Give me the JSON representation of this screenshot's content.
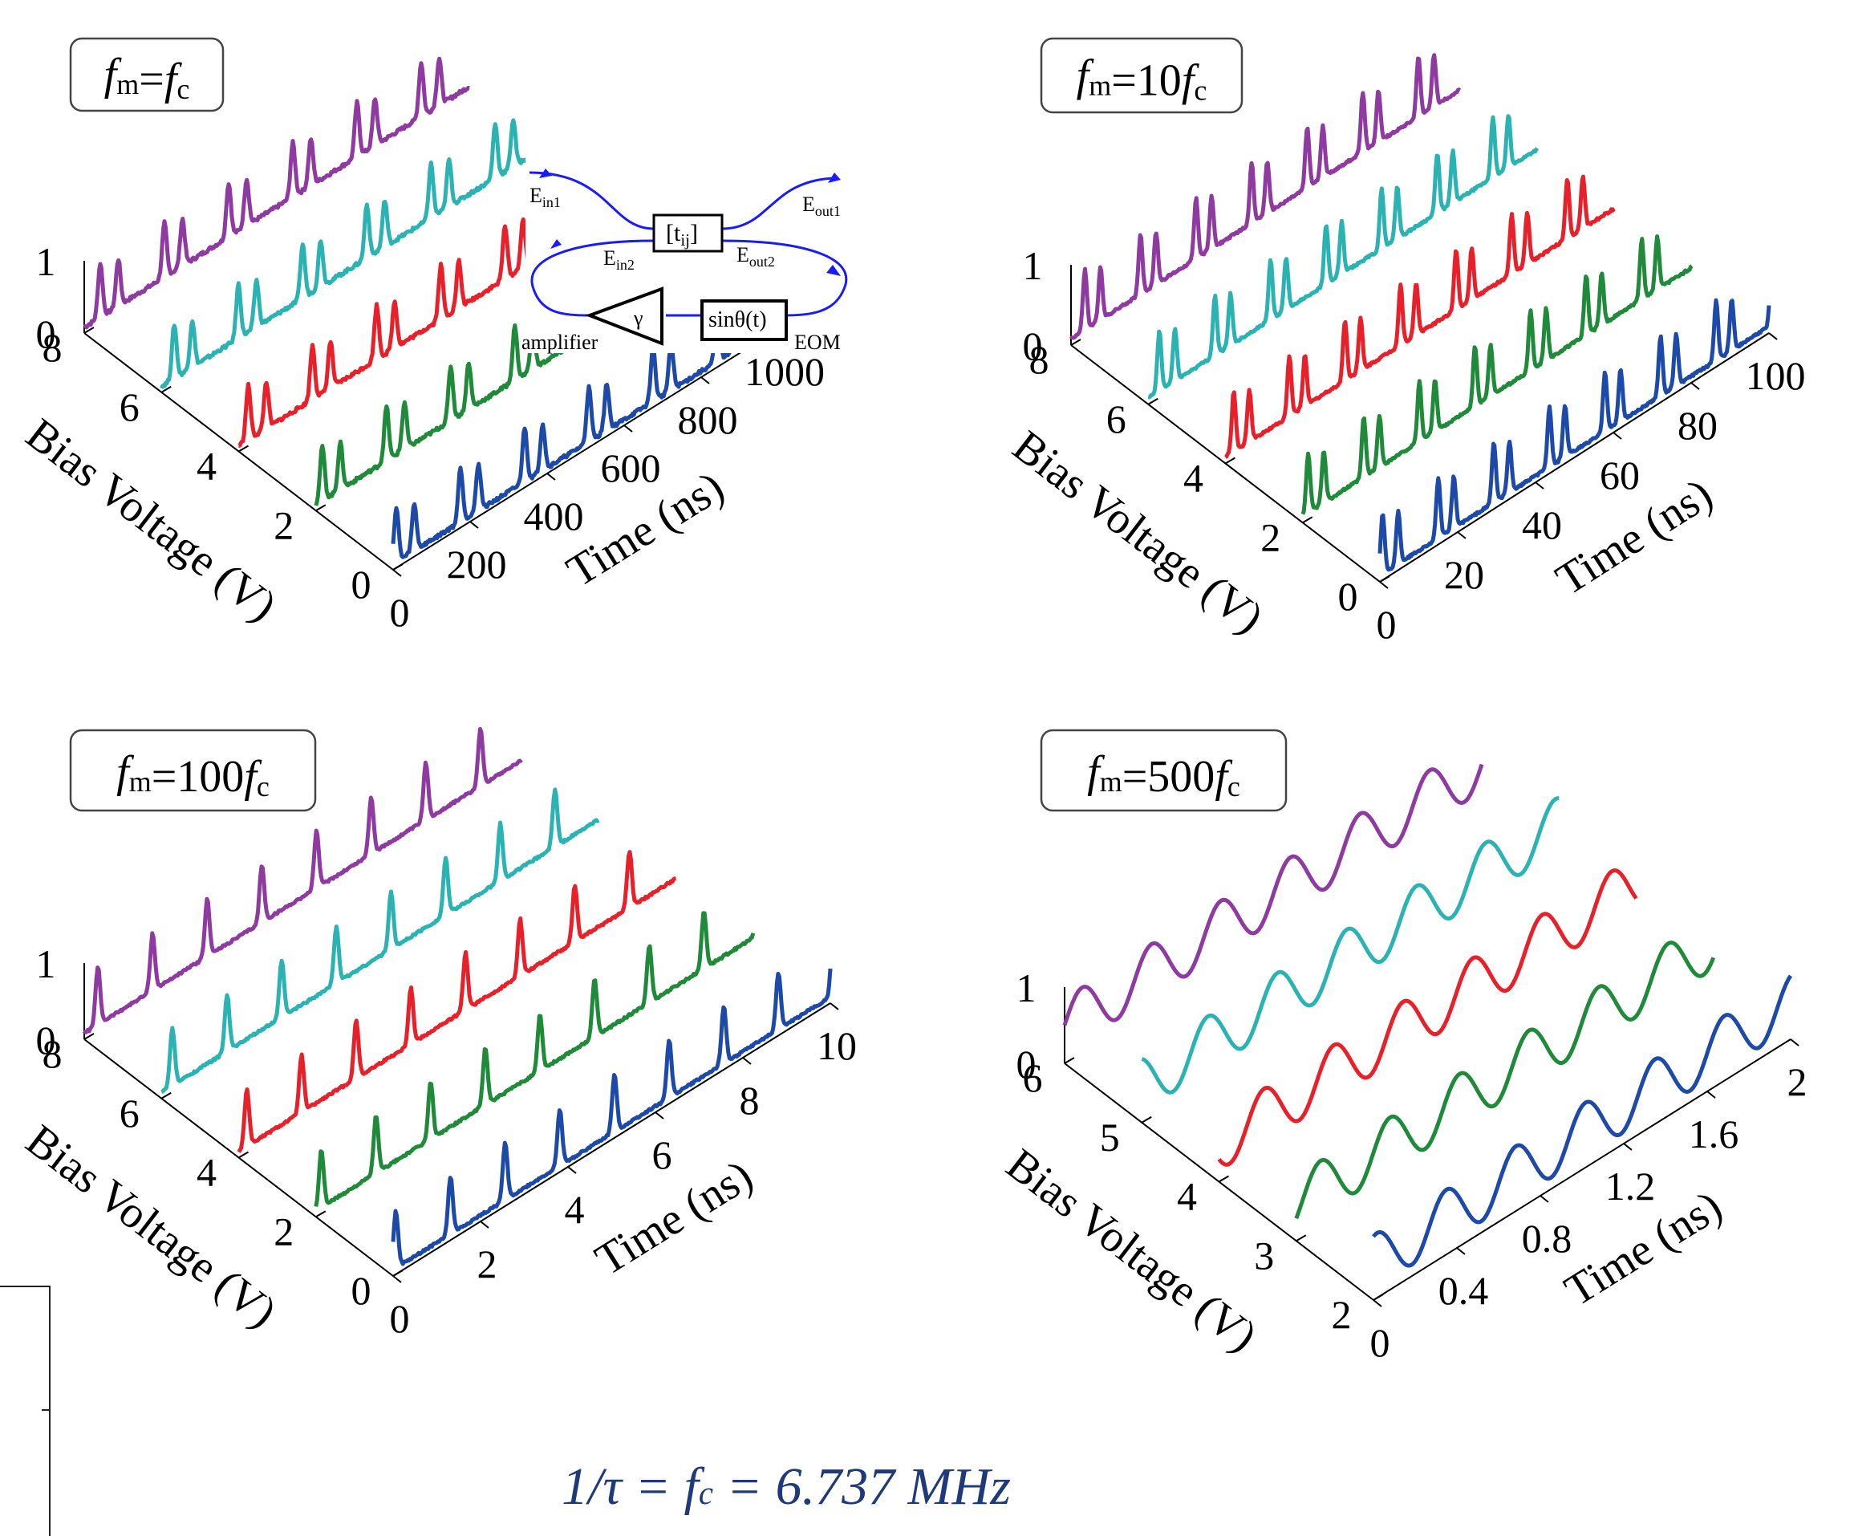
{
  "caption": {
    "lhs": "1/τ = f",
    "sub": "c",
    "rhs": " = 6.737 MHz"
  },
  "colors": {
    "purple": "#8e3aa0",
    "cyan": "#2bb3b3",
    "red": "#e8202a",
    "green": "#1e8a3a",
    "blue": "#1d4aa8",
    "axis": "#000000",
    "diagram": "#1a1aff"
  },
  "inset": {
    "labels": [
      "E",
      "E",
      "E",
      "E",
      "[t",
      "]",
      "γ",
      "sinθ(t)",
      "amplifier",
      "EOM"
    ],
    "subs": [
      "in1",
      "in2",
      "out1",
      "out2",
      "ij"
    ]
  },
  "chart_data": [
    {
      "type": "line",
      "label": {
        "pre": "f",
        "msub": "m",
        "mid": "=",
        "post": "f",
        "csub": "c",
        "coef": ""
      },
      "xlabel": "Time (ns)",
      "ylabel": "Bias Voltage (V)",
      "zticks": [
        "0",
        "1"
      ],
      "xticks": [
        "0",
        "200",
        "400",
        "600",
        "800",
        "1000"
      ],
      "yticks": [
        "0",
        "2",
        "4",
        "6",
        "8"
      ],
      "xlim": [
        0,
        1000
      ],
      "ylim": [
        0,
        8
      ],
      "zlim": [
        0,
        1
      ],
      "npeaks": 6,
      "peakwidth": 0.05,
      "double": true,
      "noise": 0.05,
      "series": [
        {
          "bias": 8,
          "color": "purple"
        },
        {
          "bias": 6,
          "color": "cyan"
        },
        {
          "bias": 4,
          "color": "red"
        },
        {
          "bias": 2,
          "color": "green"
        },
        {
          "bias": 0,
          "color": "blue"
        }
      ]
    },
    {
      "type": "line",
      "label": {
        "pre": "f",
        "msub": "m",
        "mid": "=10",
        "post": "f",
        "csub": "c",
        "coef": ""
      },
      "xlabel": "Time (ns)",
      "ylabel": "Bias Voltage (V)",
      "zticks": [
        "0",
        "1"
      ],
      "xticks": [
        "0",
        "20",
        "40",
        "60",
        "80",
        "100"
      ],
      "yticks": [
        "0",
        "2",
        "4",
        "6",
        "8"
      ],
      "xlim": [
        0,
        100
      ],
      "ylim": [
        0,
        8
      ],
      "zlim": [
        0,
        1
      ],
      "npeaks": 7,
      "peakwidth": 0.05,
      "double": true,
      "noise": 0.03,
      "series": [
        {
          "bias": 8,
          "color": "purple"
        },
        {
          "bias": 6,
          "color": "cyan"
        },
        {
          "bias": 4,
          "color": "red"
        },
        {
          "bias": 2,
          "color": "green"
        },
        {
          "bias": 0,
          "color": "blue"
        }
      ]
    },
    {
      "type": "line",
      "label": {
        "pre": "f",
        "msub": "m",
        "mid": "=100",
        "post": "f",
        "csub": "c",
        "coef": ""
      },
      "xlabel": "Time (ns)",
      "ylabel": "Bias Voltage (V)",
      "zticks": [
        "0",
        "1"
      ],
      "xticks": [
        "0",
        "2",
        "4",
        "6",
        "8",
        "10"
      ],
      "yticks": [
        "0",
        "2",
        "4",
        "6",
        "8"
      ],
      "xlim": [
        0,
        10
      ],
      "ylim": [
        0,
        8
      ],
      "zlim": [
        0,
        1
      ],
      "npeaks": 8,
      "peakwidth": 0.06,
      "double": false,
      "noise": 0.03,
      "series": [
        {
          "bias": 8,
          "color": "purple"
        },
        {
          "bias": 6,
          "color": "cyan"
        },
        {
          "bias": 4,
          "color": "red"
        },
        {
          "bias": 2,
          "color": "green"
        },
        {
          "bias": 0,
          "color": "blue"
        }
      ]
    },
    {
      "type": "line",
      "label": {
        "pre": "f",
        "msub": "m",
        "mid": "=500",
        "post": "f",
        "csub": "c",
        "coef": ""
      },
      "xlabel": "Time (ns)",
      "ylabel": "Bias Voltage (V)",
      "zticks": [
        "0",
        "1"
      ],
      "xticks": [
        "0",
        "0.4",
        "0.8",
        "1.2",
        "1.6",
        "2"
      ],
      "yticks": [
        "2",
        "3",
        "4",
        "5",
        "6"
      ],
      "xlim": [
        0,
        2
      ],
      "ylim": [
        2,
        6
      ],
      "zlim": [
        0,
        1
      ],
      "npeaks": 6,
      "peakwidth": 0.12,
      "double": false,
      "noise": 0.0,
      "series": [
        {
          "bias": 6,
          "color": "purple"
        },
        {
          "bias": 5,
          "color": "cyan"
        },
        {
          "bias": 4,
          "color": "red"
        },
        {
          "bias": 3,
          "color": "green"
        },
        {
          "bias": 2,
          "color": "blue"
        }
      ]
    }
  ]
}
